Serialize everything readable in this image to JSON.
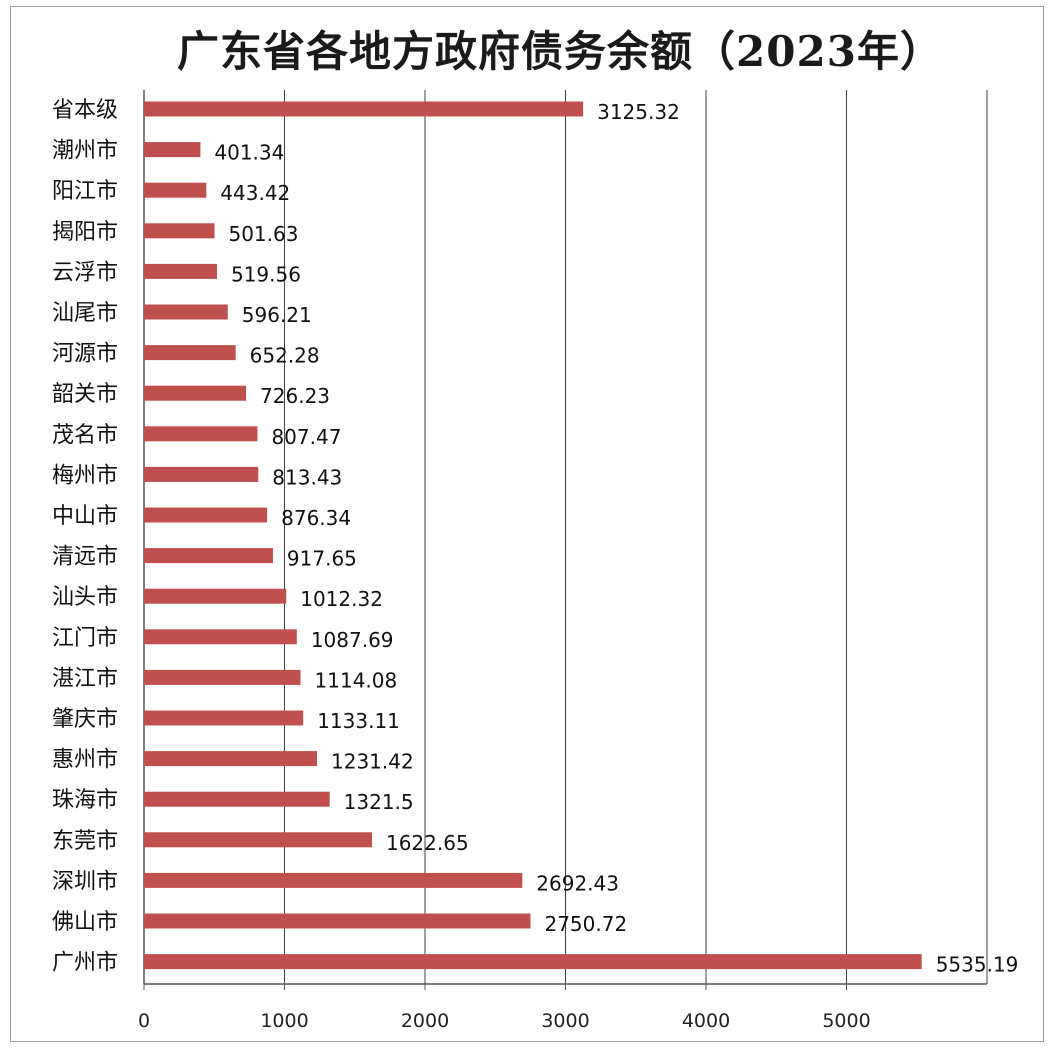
{
  "chart_data": {
    "type": "bar",
    "orientation": "horizontal",
    "title": "广东省各地方政府债务余额（2023年）",
    "categories": [
      "省本级",
      "潮州市",
      "阳江市",
      "揭阳市",
      "云浮市",
      "汕尾市",
      "河源市",
      "韶关市",
      "茂名市",
      "梅州市",
      "中山市",
      "清远市",
      "汕头市",
      "江门市",
      "湛江市",
      "肇庆市",
      "惠州市",
      "珠海市",
      "东莞市",
      "深圳市",
      "佛山市",
      "广州市"
    ],
    "values": [
      3125.32,
      401.34,
      443.42,
      501.63,
      519.56,
      596.21,
      652.28,
      726.23,
      807.47,
      813.43,
      876.34,
      917.65,
      1012.32,
      1087.69,
      1114.08,
      1133.11,
      1231.42,
      1321.5,
      1622.65,
      2692.43,
      2750.72,
      5535.19
    ],
    "value_labels": [
      "3125.32",
      "401.34",
      "443.42",
      "501.63",
      "519.56",
      "596.21",
      "652.28",
      "726.23",
      "807.47",
      "813.43",
      "876.34",
      "917.65",
      "1012.32",
      "1087.69",
      "1114.08",
      "1133.11",
      "1231.42",
      "1321.5",
      "1622.65",
      "2692.43",
      "2750.72",
      "5535.19"
    ],
    "xlim": [
      0,
      6000
    ],
    "x_ticks": [
      "0",
      "1000",
      "2000",
      "3000",
      "4000",
      "5000"
    ],
    "grid": true,
    "bar_color": "#c0504d",
    "gridline_color": "#404040",
    "axis_color": "#555555"
  }
}
